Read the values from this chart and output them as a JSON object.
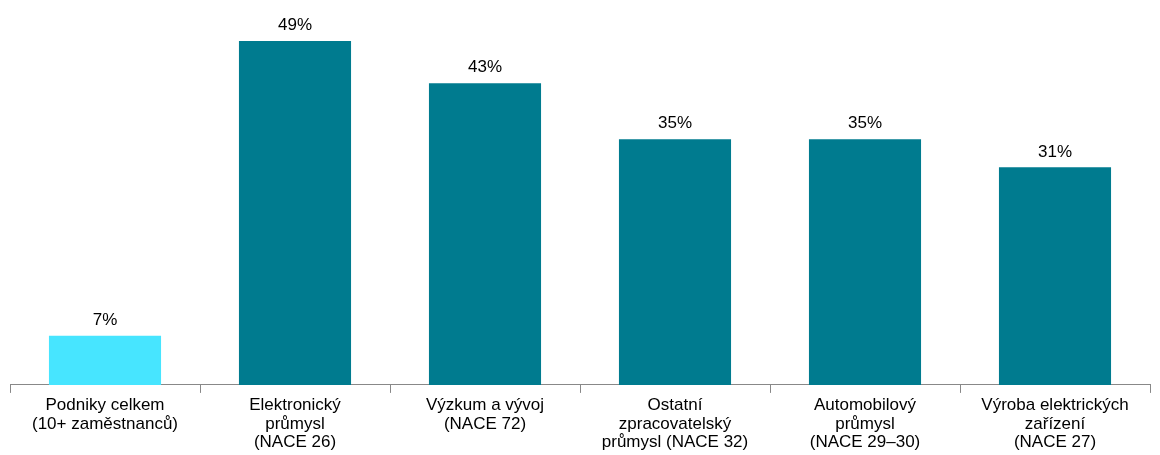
{
  "chart_data": {
    "type": "bar",
    "categories": [
      "Podniky celkem\n(10+ zaměstnanců)",
      "Elektronický\nprůmysl\n(NACE 26)",
      "Výzkum a vývoj\n(NACE 72)",
      "Ostatní\nzpracovatelský\nprůmysl (NACE 32)",
      "Automobilový\nprůmysl\n(NACE 29–30)",
      "Výroba elektrických\nzařízení\n(NACE 27)"
    ],
    "values": [
      7,
      49,
      43,
      35,
      35,
      31
    ],
    "colors": [
      "#47e5ff",
      "#007b8f",
      "#007b8f",
      "#007b8f",
      "#007b8f",
      "#007b8f"
    ],
    "value_labels": [
      "7%",
      "49%",
      "43%",
      "35%",
      "35%",
      "31%"
    ],
    "grid": false,
    "legend": false
  }
}
